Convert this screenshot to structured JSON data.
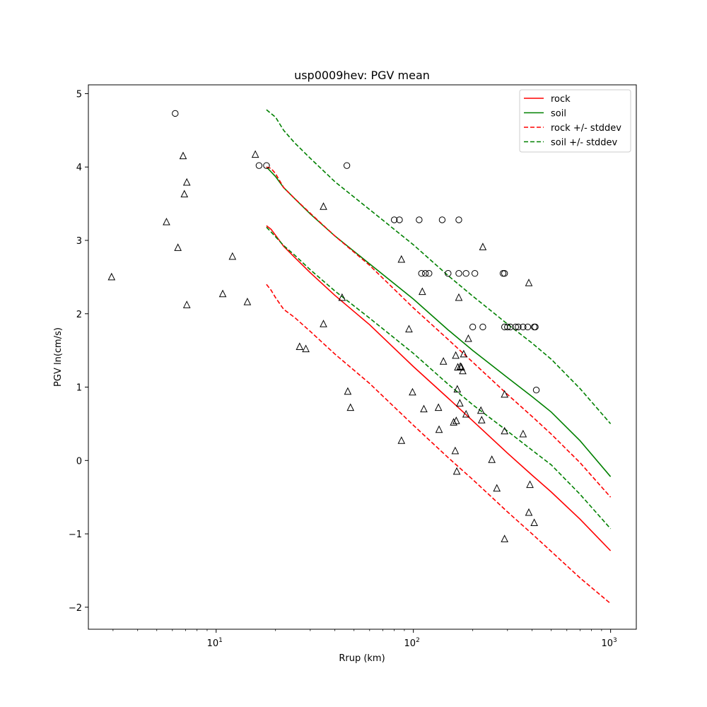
{
  "chart_data": {
    "type": "scatter",
    "title": "usp0009hev: PGV mean",
    "xlabel": "Rrup (km)",
    "ylabel": "PGV ln(cm/s)",
    "xscale": "log",
    "xlim": [
      2.25,
      1350
    ],
    "ylim": [
      -2.3,
      5.12
    ],
    "x_ticks": [
      {
        "value": 10,
        "base": "10",
        "exp": "1"
      },
      {
        "value": 100,
        "base": "10",
        "exp": "2"
      },
      {
        "value": 1000,
        "base": "10",
        "exp": "3"
      }
    ],
    "y_ticks": [
      {
        "value": -2,
        "label": "−2"
      },
      {
        "value": -1,
        "label": "−1"
      },
      {
        "value": 0,
        "label": "0"
      },
      {
        "value": 1,
        "label": "1"
      },
      {
        "value": 2,
        "label": "2"
      },
      {
        "value": 3,
        "label": "3"
      },
      {
        "value": 4,
        "label": "4"
      },
      {
        "value": 5,
        "label": "5"
      }
    ],
    "legend_position": "top-right",
    "series": [
      {
        "name": "rock",
        "kind": "line",
        "color": "#ff0000",
        "dash": "solid",
        "x": [
          18,
          19,
          20,
          22,
          25,
          30,
          40,
          60,
          100,
          150,
          200,
          300,
          400,
          500,
          700,
          1000
        ],
        "y": [
          3.2,
          3.15,
          3.07,
          2.92,
          2.77,
          2.56,
          2.25,
          1.85,
          1.28,
          0.85,
          0.54,
          0.1,
          -0.2,
          -0.43,
          -0.8,
          -1.23
        ]
      },
      {
        "name": "soil",
        "kind": "line",
        "color": "#008000",
        "dash": "solid",
        "x": [
          18,
          20,
          22,
          25,
          30,
          40,
          60,
          100,
          150,
          200,
          300,
          400,
          500,
          700,
          1000
        ],
        "y": [
          4.0,
          3.87,
          3.72,
          3.57,
          3.36,
          3.06,
          2.68,
          2.2,
          1.78,
          1.5,
          1.13,
          0.87,
          0.66,
          0.27,
          -0.22
        ]
      },
      {
        "name": "rock +/- stddev",
        "kind": "line",
        "color": "#ff0000",
        "dash": "dashed",
        "x": [
          18,
          19,
          20,
          22,
          25,
          30,
          40,
          60,
          100,
          150,
          200,
          300,
          400,
          500,
          700,
          1000
        ],
        "y": [
          4.0,
          3.98,
          3.91,
          3.72,
          3.57,
          3.37,
          3.06,
          2.66,
          2.08,
          1.65,
          1.34,
          0.9,
          0.6,
          0.36,
          -0.03,
          -0.5
        ]
      },
      {
        "name": "",
        "kind": "line",
        "color": "#ff0000",
        "dash": "dashed",
        "x": [
          18,
          19,
          20,
          22,
          25,
          30,
          40,
          60,
          100,
          150,
          200,
          300,
          400,
          500,
          700,
          1000
        ],
        "y": [
          2.4,
          2.32,
          2.22,
          2.06,
          1.95,
          1.76,
          1.45,
          1.05,
          0.48,
          0.04,
          -0.26,
          -0.7,
          -1.0,
          -1.24,
          -1.6,
          -1.95
        ]
      },
      {
        "name": "soil +/- stddev",
        "kind": "line",
        "color": "#008000",
        "dash": "dashed",
        "x": [
          18,
          20,
          22,
          25,
          30,
          40,
          60,
          100,
          150,
          200,
          300,
          400,
          500,
          700,
          1000
        ],
        "y": [
          4.78,
          4.68,
          4.5,
          4.33,
          4.12,
          3.8,
          3.42,
          2.94,
          2.52,
          2.24,
          1.86,
          1.6,
          1.38,
          0.98,
          0.5
        ]
      },
      {
        "name": "",
        "kind": "line",
        "color": "#008000",
        "dash": "dashed",
        "x": [
          18,
          20,
          22,
          25,
          30,
          40,
          60,
          100,
          150,
          200,
          300,
          400,
          500,
          700,
          1000
        ],
        "y": [
          3.18,
          3.05,
          2.93,
          2.8,
          2.6,
          2.31,
          1.94,
          1.46,
          1.04,
          0.76,
          0.4,
          0.14,
          -0.06,
          -0.46,
          -0.93
        ]
      },
      {
        "name": "",
        "kind": "scatter",
        "marker": "circle",
        "x": [
          6.2,
          16.5,
          18,
          46,
          80,
          85,
          107,
          110,
          115,
          120,
          140,
          150,
          170,
          170,
          185,
          205,
          200,
          225,
          285,
          290,
          290,
          300,
          310,
          330,
          340,
          360,
          380,
          410,
          415,
          420
        ],
        "y": [
          4.73,
          4.02,
          4.02,
          4.02,
          3.28,
          3.28,
          3.28,
          2.55,
          2.55,
          2.55,
          3.28,
          2.55,
          3.28,
          2.55,
          2.55,
          2.55,
          1.82,
          1.82,
          2.55,
          2.55,
          1.82,
          1.82,
          1.82,
          1.82,
          1.82,
          1.82,
          1.82,
          1.82,
          1.82,
          0.96
        ]
      },
      {
        "name": "",
        "kind": "scatter",
        "marker": "triangle",
        "x": [
          2.95,
          5.6,
          6.4,
          6.8,
          6.9,
          7.1,
          7.1,
          10.8,
          12.1,
          14.4,
          15.8,
          26.5,
          28.5,
          35,
          35,
          43.5,
          46.5,
          48,
          87,
          87,
          95,
          99,
          111,
          113,
          134,
          135,
          142,
          160,
          163,
          164,
          165,
          166,
          167,
          168,
          170,
          172,
          173,
          175,
          178,
          180,
          185,
          190,
          220,
          222,
          225,
          250,
          265,
          290,
          290,
          290,
          360,
          385,
          385,
          390,
          410
        ],
        "y": [
          2.5,
          3.25,
          2.9,
          4.15,
          3.63,
          3.79,
          2.12,
          2.27,
          2.78,
          2.16,
          4.17,
          1.55,
          1.52,
          3.46,
          1.86,
          2.22,
          0.94,
          0.72,
          2.74,
          0.27,
          1.79,
          0.93,
          2.3,
          0.7,
          0.72,
          0.42,
          1.35,
          0.52,
          0.13,
          1.43,
          0.54,
          -0.15,
          0.97,
          1.27,
          2.22,
          0.78,
          1.28,
          1.27,
          1.22,
          1.45,
          0.63,
          1.66,
          0.68,
          0.55,
          2.91,
          0.01,
          -0.38,
          -1.07,
          0.4,
          0.9,
          0.36,
          -0.71,
          2.42,
          -0.33,
          -0.85
        ]
      }
    ]
  }
}
